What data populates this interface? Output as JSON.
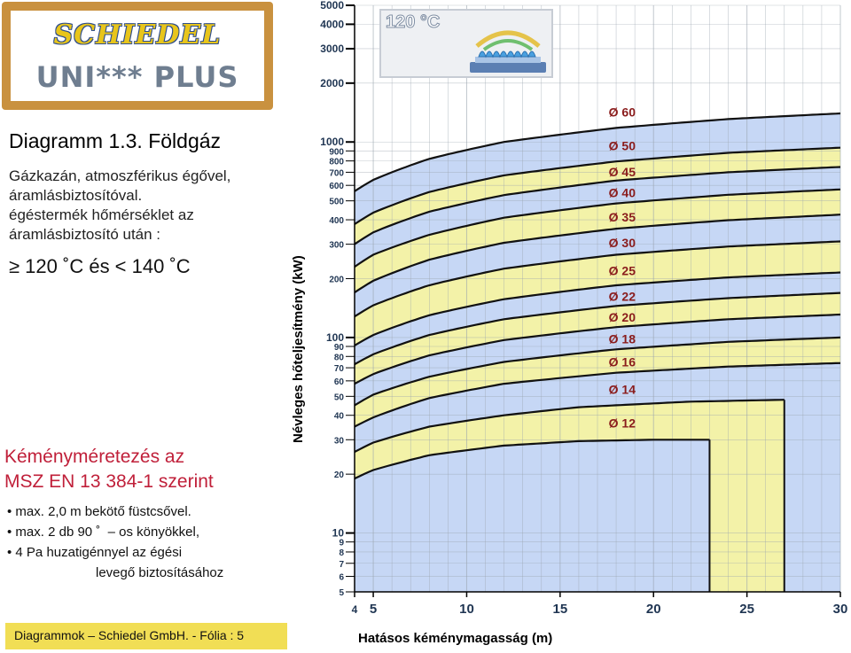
{
  "logo": {
    "brand": "SCHIEDEL",
    "product": "UNI*** PLUS"
  },
  "title": "Diagramm 1.3. Földgáz",
  "description": [
    "Gázkazán, atmoszférikus égővel,",
    "áramlásbiztosítóval.",
    "égéstermék hőmérséklet az",
    "áramlásbiztosító után :"
  ],
  "temperature_range": "≥ 120 ˚C és < 140 ˚C",
  "sizing": {
    "title_lines": [
      "Kéményméretezés az",
      "MSZ EN 13 384-1 szerint"
    ],
    "bullets": [
      "max. 2,0 m bekötő füstcsővel.",
      "max. 2 db 90 ˚  – os könyökkel,",
      "4 Pa huzatigénnyel az égési"
    ],
    "bullet_continuation": "levegő biztosításához"
  },
  "footer": "Diagrammok – Schiedel GmbH. - Fólia : 5",
  "inset": {
    "temperature": "120 °C",
    "icon": "gas-burner-flame-icon"
  },
  "colors": {
    "band_blue": "#c6d7f5",
    "band_yellow": "#f3f2a8",
    "curve": "#111111",
    "label": "#8a1c1c",
    "logo_frame": "#c9913f",
    "footer_bg": "#f1de55"
  },
  "chart_data": {
    "type": "area",
    "xlabel": "Hatásos kéménymagasság (m)",
    "ylabel": "Névleges hőteljesítmény (kW)",
    "xlim": [
      4,
      30
    ],
    "ylim": [
      5,
      5000
    ],
    "y_scale": "log",
    "grid": true,
    "x_ticks": [
      "4",
      "5",
      "10",
      "15",
      "20",
      "25",
      "30"
    ],
    "y_ticks": [
      "5000",
      "4000",
      "3000",
      "2000",
      "1000",
      "900",
      "800",
      "700",
      "600",
      "500",
      "400",
      "300",
      "200",
      "100",
      "90",
      "80",
      "70",
      "60",
      "50",
      "40",
      "30",
      "20",
      "10",
      "9",
      "8",
      "7",
      "6",
      "5"
    ],
    "series": [
      {
        "name": "Ø 12",
        "x": [
          4,
          5,
          8,
          12,
          16,
          20,
          23
        ],
        "y": [
          19,
          21,
          25,
          28,
          29.5,
          30,
          30
        ],
        "x_end": 23
      },
      {
        "name": "Ø 14",
        "x": [
          4,
          5,
          8,
          12,
          16,
          22,
          27
        ],
        "y": [
          26,
          29,
          35,
          40,
          44,
          47,
          48
        ],
        "x_end": 27
      },
      {
        "name": "Ø 16",
        "x": [
          4,
          5,
          8,
          12,
          18,
          24,
          30
        ],
        "y": [
          35,
          39,
          49,
          58,
          66,
          71,
          74
        ]
      },
      {
        "name": "Ø 18",
        "x": [
          4,
          5,
          8,
          12,
          18,
          24,
          30
        ],
        "y": [
          45,
          51,
          63,
          75,
          87,
          95,
          100
        ]
      },
      {
        "name": "Ø 20",
        "x": [
          4,
          5,
          8,
          12,
          18,
          24,
          30
        ],
        "y": [
          58,
          65,
          81,
          97,
          113,
          124,
          131
        ]
      },
      {
        "name": "Ø 22",
        "x": [
          4,
          5,
          8,
          12,
          18,
          24,
          30
        ],
        "y": [
          73,
          82,
          103,
          124,
          145,
          159,
          169
        ]
      },
      {
        "name": "Ø 25",
        "x": [
          4,
          5,
          8,
          12,
          18,
          24,
          30
        ],
        "y": [
          91,
          103,
          130,
          157,
          185,
          203,
          215
        ]
      },
      {
        "name": "Ø 30",
        "x": [
          4,
          5,
          8,
          12,
          18,
          24,
          30
        ],
        "y": [
          128,
          146,
          185,
          225,
          265,
          292,
          310
        ]
      },
      {
        "name": "Ø 35",
        "x": [
          4,
          5,
          8,
          12,
          18,
          24,
          30
        ],
        "y": [
          170,
          195,
          250,
          305,
          360,
          398,
          425
        ]
      },
      {
        "name": "Ø 40",
        "x": [
          4,
          5,
          8,
          12,
          18,
          24,
          30
        ],
        "y": [
          230,
          265,
          335,
          410,
          485,
          537,
          572
        ]
      },
      {
        "name": "Ø 45",
        "x": [
          4,
          5,
          8,
          12,
          18,
          24,
          30
        ],
        "y": [
          300,
          345,
          440,
          535,
          635,
          700,
          745
        ]
      },
      {
        "name": "Ø 50",
        "x": [
          4,
          5,
          8,
          12,
          18,
          24,
          30
        ],
        "y": [
          380,
          435,
          555,
          675,
          795,
          880,
          935
        ]
      },
      {
        "name": "Ø 60",
        "x": [
          4,
          5,
          8,
          12,
          18,
          24,
          30
        ],
        "y": [
          560,
          640,
          820,
          1000,
          1180,
          1310,
          1400
        ]
      }
    ]
  }
}
